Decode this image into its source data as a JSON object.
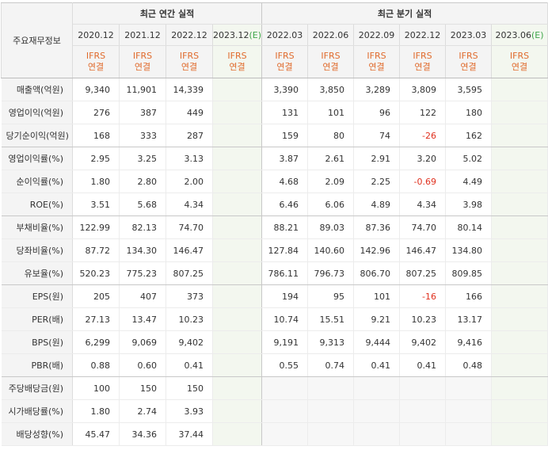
{
  "header": {
    "row_label": "주요재무정보",
    "annual_group": "최근 연간 실적",
    "quarter_group": "최근 분기 실적",
    "periods": [
      {
        "label": "2020.12",
        "est": ""
      },
      {
        "label": "2021.12",
        "est": ""
      },
      {
        "label": "2022.12",
        "est": ""
      },
      {
        "label": "2023.12",
        "est": "(E)"
      },
      {
        "label": "2022.03",
        "est": ""
      },
      {
        "label": "2022.06",
        "est": ""
      },
      {
        "label": "2022.09",
        "est": ""
      },
      {
        "label": "2022.12",
        "est": ""
      },
      {
        "label": "2023.03",
        "est": ""
      },
      {
        "label": "2023.06",
        "est": "(E)"
      }
    ],
    "basis_top": "IFRS",
    "basis_bottom": "연결"
  },
  "rows": [
    {
      "label": "매출액(억원)",
      "values": [
        "9,340",
        "11,901",
        "14,339",
        "",
        "3,390",
        "3,850",
        "3,289",
        "3,809",
        "3,595",
        ""
      ]
    },
    {
      "label": "영업이익(억원)",
      "values": [
        "276",
        "387",
        "449",
        "",
        "131",
        "101",
        "96",
        "122",
        "180",
        ""
      ]
    },
    {
      "label": "당기순이익(억원)",
      "values": [
        "168",
        "333",
        "287",
        "",
        "159",
        "80",
        "74",
        "-26",
        "162",
        ""
      ]
    },
    {
      "label": "영업이익률(%)",
      "values": [
        "2.95",
        "3.25",
        "3.13",
        "",
        "3.87",
        "2.61",
        "2.91",
        "3.20",
        "5.02",
        ""
      ]
    },
    {
      "label": "순이익률(%)",
      "values": [
        "1.80",
        "2.80",
        "2.00",
        "",
        "4.68",
        "2.09",
        "2.25",
        "-0.69",
        "4.49",
        ""
      ]
    },
    {
      "label": "ROE(%)",
      "values": [
        "3.51",
        "5.68",
        "4.34",
        "",
        "6.46",
        "6.06",
        "4.89",
        "4.34",
        "3.98",
        ""
      ]
    },
    {
      "label": "부채비율(%)",
      "values": [
        "122.99",
        "82.13",
        "74.70",
        "",
        "88.21",
        "89.03",
        "87.36",
        "74.70",
        "80.14",
        ""
      ]
    },
    {
      "label": "당좌비율(%)",
      "values": [
        "87.72",
        "134.30",
        "146.47",
        "",
        "127.84",
        "140.60",
        "142.96",
        "146.47",
        "134.80",
        ""
      ]
    },
    {
      "label": "유보율(%)",
      "values": [
        "520.23",
        "775.23",
        "807.25",
        "",
        "786.11",
        "796.73",
        "806.70",
        "807.25",
        "809.85",
        ""
      ]
    },
    {
      "label": "EPS(원)",
      "values": [
        "205",
        "407",
        "373",
        "",
        "194",
        "95",
        "101",
        "-16",
        "166",
        ""
      ]
    },
    {
      "label": "PER(배)",
      "values": [
        "27.13",
        "13.47",
        "10.23",
        "",
        "10.74",
        "15.51",
        "9.21",
        "10.23",
        "13.17",
        ""
      ]
    },
    {
      "label": "BPS(원)",
      "values": [
        "6,299",
        "9,069",
        "9,402",
        "",
        "9,191",
        "9,313",
        "9,444",
        "9,402",
        "9,416",
        ""
      ]
    },
    {
      "label": "PBR(배)",
      "values": [
        "0.88",
        "0.60",
        "0.41",
        "",
        "0.55",
        "0.74",
        "0.41",
        "0.41",
        "0.48",
        ""
      ]
    },
    {
      "label": "주당배당금(원)",
      "values": [
        "100",
        "150",
        "150",
        "",
        "",
        "",
        "",
        "",
        "",
        ""
      ]
    },
    {
      "label": "시가배당률(%)",
      "values": [
        "1.80",
        "2.74",
        "3.93",
        "",
        "",
        "",
        "",
        "",
        "",
        ""
      ]
    },
    {
      "label": "배당성향(%)",
      "values": [
        "45.47",
        "34.36",
        "37.44",
        "",
        "",
        "",
        "",
        "",
        "",
        ""
      ]
    }
  ]
}
